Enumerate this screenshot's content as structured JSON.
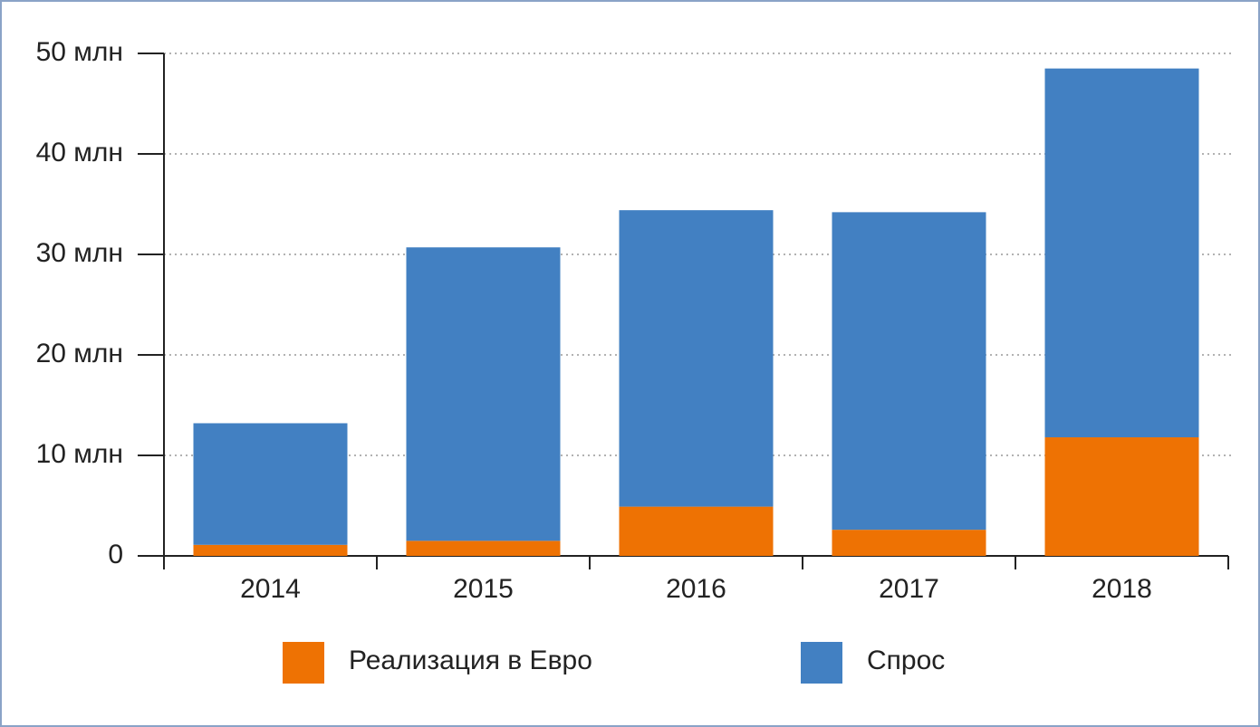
{
  "chart_data": {
    "type": "stacked-bar",
    "categories": [
      "2014",
      "2015",
      "2016",
      "2017",
      "2018"
    ],
    "series": [
      {
        "name": "Реализация в Евро",
        "color": "#ee7203",
        "values": [
          1.1,
          1.5,
          4.9,
          2.6,
          11.8
        ]
      },
      {
        "name": "Спрос",
        "color": "#4280c2",
        "values": [
          12.1,
          29.2,
          29.5,
          31.6,
          36.7
        ]
      }
    ],
    "ylim": [
      0,
      50
    ],
    "yticks": [
      0,
      {
        "value": 10,
        "label": "10 млн"
      },
      {
        "value": 20,
        "label": "20 млн"
      },
      {
        "value": 30,
        "label": "30 млн"
      },
      {
        "value": 40,
        "label": "40 млн"
      },
      {
        "value": 50,
        "label": "50 млн"
      }
    ],
    "grid": true
  }
}
